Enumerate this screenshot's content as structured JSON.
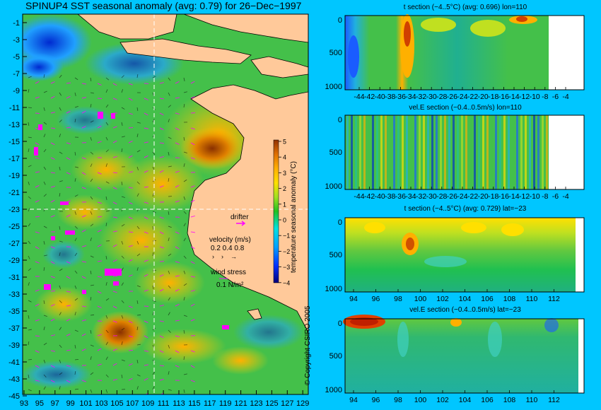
{
  "map": {
    "title": "SPINUP4 SST seasonal anomaly (avg: 0.79) for 26−Dec−1997",
    "lat_ticks": [
      "-1",
      "-3",
      "-5",
      "-7",
      "-9",
      "-11",
      "-13",
      "-15",
      "-17",
      "-19",
      "-21",
      "-23",
      "-25",
      "-27",
      "-29",
      "-31",
      "-33",
      "-35",
      "-37",
      "-39",
      "-41",
      "-43",
      "-45"
    ],
    "lon_ticks": [
      "93",
      "95",
      "97",
      "99",
      "101",
      "103",
      "105",
      "107",
      "109",
      "111",
      "113",
      "115",
      "117",
      "119",
      "121",
      "123",
      "125",
      "127",
      "129"
    ],
    "colorbar": {
      "label": "temperature seasonal anomaly (°C)",
      "ticks": [
        "5",
        "4",
        "3",
        "2",
        "1",
        "0",
        "−1",
        "−2",
        "−3",
        "−4"
      ]
    },
    "legend": {
      "drifter": "drifter",
      "velocity": "velocity (m/s)",
      "velocity_scale": "0.2 0.4 0.8",
      "wind": "wind stress",
      "wind_scale": "0.1 N/m²"
    }
  },
  "sections": [
    {
      "title": "t section (−4..5°C) (avg: 0.696) lon=110",
      "y_ticks": [
        "0",
        "500",
        "1000"
      ],
      "x_ticks": [
        "-44",
        "-42",
        "-40",
        "-38",
        "-36",
        "-34",
        "-32",
        "-30",
        "-28",
        "-26",
        "-24",
        "-22",
        "-20",
        "-18",
        "-16",
        "-14",
        "-12",
        "-10",
        "-8",
        "-6",
        "-4"
      ]
    },
    {
      "title": "vel.E section (−0.4..0.5m/s) lon=110",
      "y_ticks": [
        "0",
        "500",
        "1000"
      ],
      "x_ticks": [
        "-44",
        "-42",
        "-40",
        "-38",
        "-36",
        "-34",
        "-32",
        "-30",
        "-28",
        "-26",
        "-24",
        "-22",
        "-20",
        "-18",
        "-16",
        "-14",
        "-12",
        "-10",
        "-8",
        "-6",
        "-4"
      ]
    },
    {
      "title": "t section (−4..5°C) (avg: 0.729) lat=−23",
      "y_ticks": [
        "0",
        "500",
        "1000"
      ],
      "x_ticks": [
        "94",
        "96",
        "98",
        "100",
        "102",
        "104",
        "106",
        "108",
        "110",
        "112"
      ]
    },
    {
      "title": "vel.E section (−0.4..0.5m/s) lat=−23",
      "y_ticks": [
        "0",
        "500",
        "1000"
      ],
      "x_ticks": [
        "94",
        "96",
        "98",
        "100",
        "102",
        "104",
        "106",
        "108",
        "110",
        "112"
      ]
    }
  ],
  "copyright": "© Copyright CSIRO 2005",
  "colors": {
    "background": "#00c6ff",
    "land": "#ffc99a",
    "ocean": "#44c04a",
    "warm": "#ffc000",
    "hot": "#d86000",
    "cold": "#1a5cff",
    "drifter": "#ff00ff"
  }
}
